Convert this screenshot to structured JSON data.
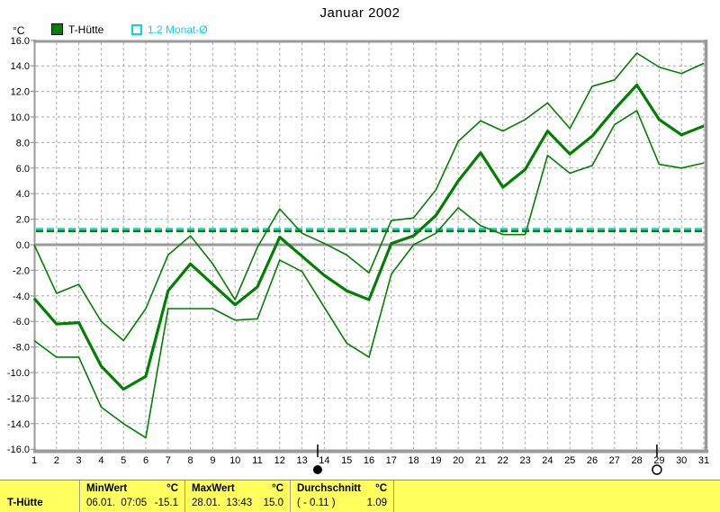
{
  "title": "Januar 2002",
  "y_axis": {
    "unit": "°C",
    "tick_labels": [
      "16.0",
      "14.0",
      "12.0",
      "10.0",
      "8.0",
      "6.0",
      "4.0",
      "2.0",
      "0.0",
      "-2.0",
      "-4.0",
      "-6.0",
      "-8.0",
      "-10.0",
      "-12.0",
      "-14.0",
      "-16.0"
    ]
  },
  "legend": [
    {
      "label": "T-Hütte",
      "color": "#008000",
      "swatch": "filled-square"
    },
    {
      "label": "1.2 Monat-Ø",
      "color": "#00dcdc",
      "swatch": "outline-square"
    }
  ],
  "chart_data": {
    "type": "line",
    "title": "Januar 2002",
    "ylabel": "°C",
    "ylim": [
      -16,
      16
    ],
    "ystep": 2,
    "xlim": [
      1,
      31
    ],
    "grid": true,
    "x": [
      1,
      2,
      3,
      4,
      5,
      6,
      7,
      8,
      9,
      10,
      11,
      12,
      13,
      14,
      15,
      16,
      17,
      18,
      19,
      20,
      21,
      22,
      23,
      24,
      25,
      26,
      27,
      28,
      29,
      30,
      31
    ],
    "series": [
      {
        "name": "T-Hütte Tagesmaximum",
        "style": "thin",
        "color": "#008000",
        "values": [
          0.0,
          -3.8,
          -3.1,
          -6.0,
          -7.5,
          -5.0,
          -0.8,
          0.7,
          -1.5,
          -4.3,
          -0.2,
          2.8,
          0.9,
          0.1,
          -0.8,
          -2.2,
          1.9,
          2.1,
          4.3,
          8.1,
          9.7,
          8.9,
          9.8,
          11.1,
          9.1,
          12.4,
          12.9,
          15.0,
          13.9,
          13.4,
          14.2
        ]
      },
      {
        "name": "T-Hütte Tagesmittel",
        "style": "thick",
        "color": "#008000",
        "values": [
          -4.2,
          -6.2,
          -6.1,
          -9.5,
          -11.3,
          -10.3,
          -3.6,
          -1.5,
          -3.1,
          -4.7,
          -3.3,
          0.6,
          -0.9,
          -2.4,
          -3.6,
          -4.3,
          0.1,
          0.7,
          2.3,
          5.0,
          7.2,
          4.5,
          5.9,
          8.9,
          7.1,
          8.5,
          10.6,
          12.5,
          9.8,
          8.6,
          9.3
        ]
      },
      {
        "name": "T-Hütte Tagesminimum",
        "style": "thin",
        "color": "#008000",
        "values": [
          -7.5,
          -8.8,
          -8.8,
          -12.7,
          -14.0,
          -15.1,
          -5.0,
          -5.0,
          -5.0,
          -5.9,
          -5.8,
          -1.2,
          -2.1,
          -4.9,
          -7.7,
          -8.8,
          -2.3,
          0.0,
          0.9,
          2.9,
          1.5,
          0.8,
          0.8,
          7.0,
          5.6,
          6.2,
          9.4,
          10.5,
          6.3,
          6.0,
          6.4
        ]
      }
    ],
    "avg_line": {
      "label": "1.2 Monat-Ø",
      "value": 1.15,
      "top_color": "#00dcdc",
      "bottom_color": "#008000"
    },
    "moon_markers": [
      {
        "day": 13.7,
        "type": "new-moon"
      },
      {
        "day": 28.9,
        "type": "full-moon"
      }
    ]
  },
  "status_bar": {
    "row_label": "T-Hütte",
    "sections": [
      {
        "header": "MinWert",
        "unit": "°C",
        "detail": "06.01.  07:05",
        "value": "-15.1"
      },
      {
        "header": "MaxWert",
        "unit": "°C",
        "detail": "28.01.  13:43",
        "value": "15.0"
      },
      {
        "header": "Durchschnitt",
        "unit": "°C",
        "detail": "( - 0.11 )",
        "value": "1.09"
      }
    ]
  }
}
